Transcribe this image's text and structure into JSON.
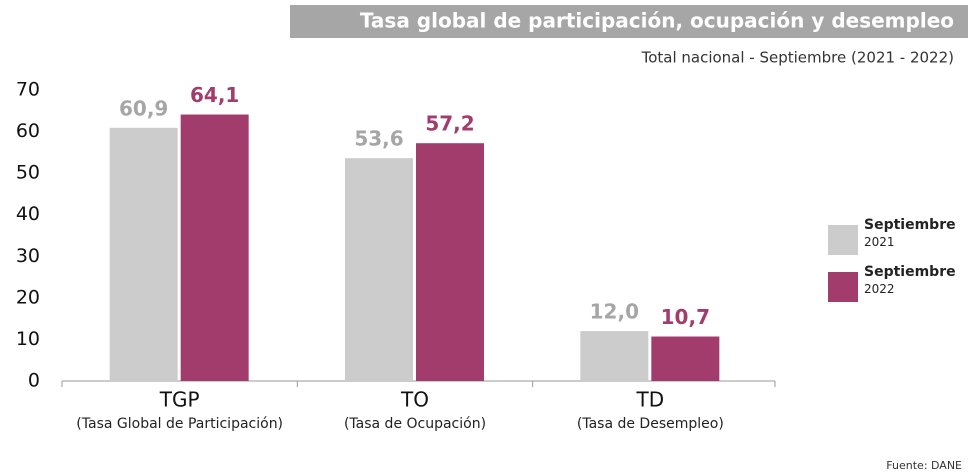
{
  "chart_data": {
    "type": "bar",
    "title": "Tasa global de participación, ocupación y desempleo",
    "subtitle": "Total nacional - Septiembre (2021 - 2022)",
    "categories": [
      "TGP",
      "TO",
      "TD"
    ],
    "category_descriptions": [
      "(Tasa Global de Participación)",
      "(Tasa de Ocupación)",
      "(Tasa de Desempleo)"
    ],
    "series": [
      {
        "name": "Septiembre 2021",
        "color": "#cccccc",
        "label_color": "#a6a6a6",
        "values": [
          60.9,
          53.6,
          12.0
        ],
        "value_labels": [
          "60,9",
          "53,6",
          "12,0"
        ]
      },
      {
        "name": "Septiembre 2022",
        "color": "#a23c6c",
        "label_color": "#a23c6c",
        "values": [
          64.1,
          57.2,
          10.7
        ],
        "value_labels": [
          "64,1",
          "57,2",
          "10,7"
        ]
      }
    ],
    "ylim": [
      0,
      70
    ],
    "yticks": [
      0,
      10,
      20,
      30,
      40,
      50,
      60,
      70
    ],
    "grid": false,
    "legend": "right",
    "source": "Fuente: DANE"
  }
}
